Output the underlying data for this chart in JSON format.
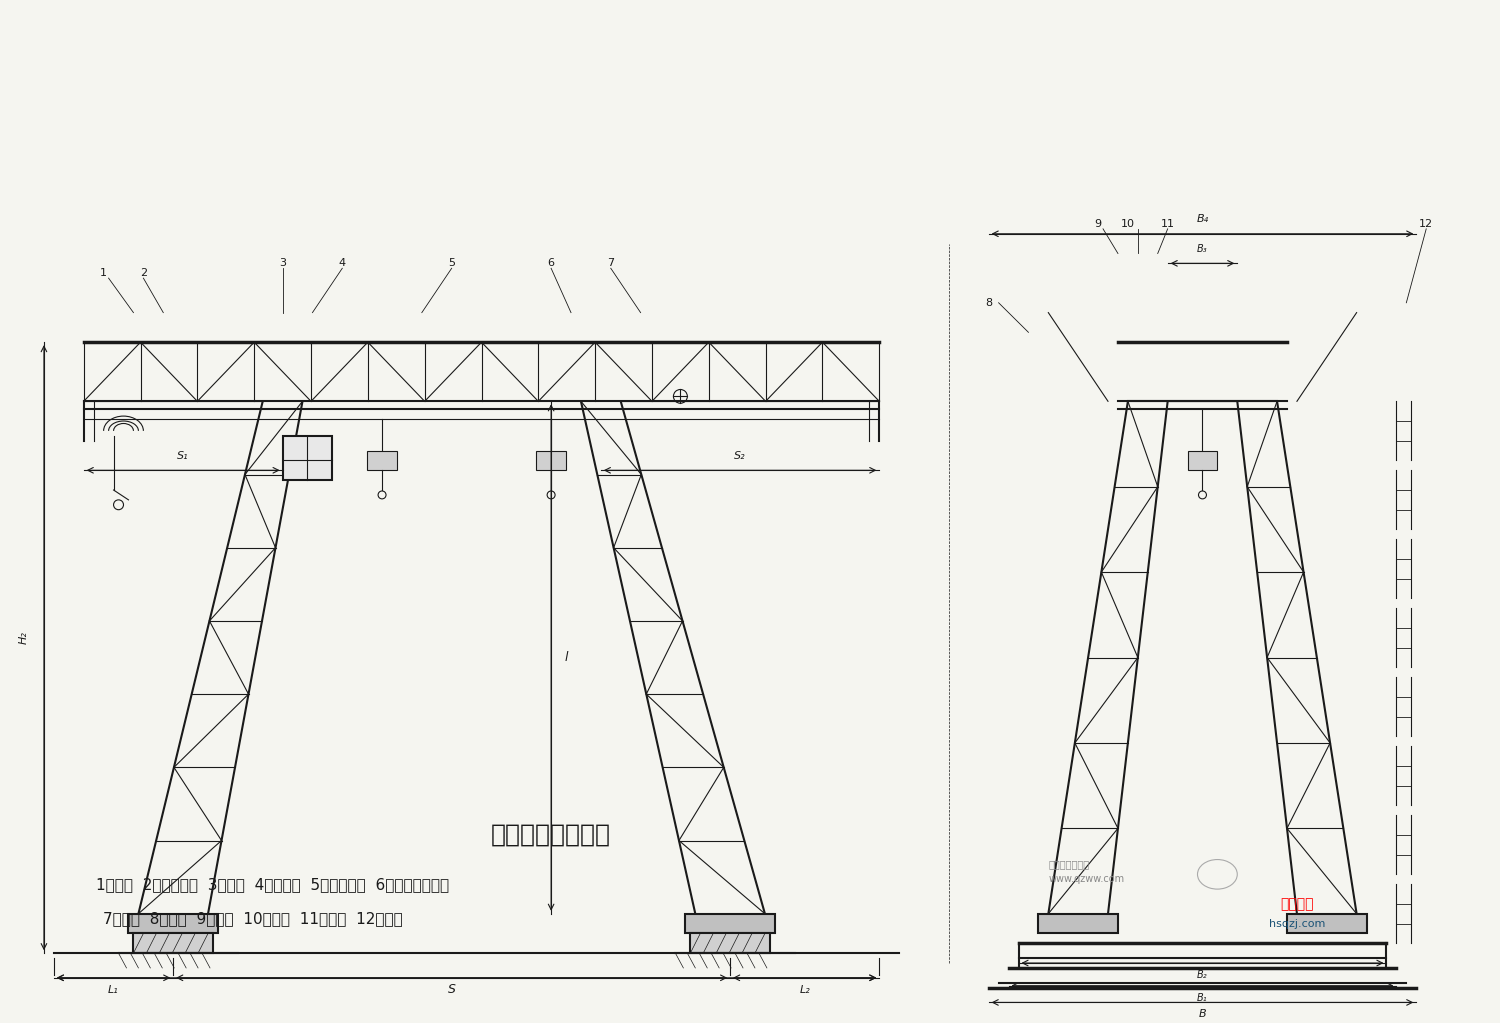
{
  "title": "结构及外型尺寸图",
  "bg_color": "#f5f5f0",
  "line_color": "#1a1a1a",
  "dim_color": "#1a1a1a",
  "label_line1": "1、主梁  2、电器安装  3、支腿  4、操纵室  5、电动葫芦  6、大车运行机构",
  "label_line2": "7、铭牌  8、横梁  9、螺栓  10、螺母  11、垫圈  12、梯子",
  "watermark1": "起重旺旺商贸城",
  "watermark2": "www.qzww.com",
  "brand": "上起鸿升",
  "brand_url": "hsqzj.com",
  "dim_labels": {
    "L1": "L₁",
    "S": "S",
    "L2": "L₂",
    "S1": "S₁",
    "S2": "S₂",
    "H2": "H₂",
    "l": "l",
    "B": "B",
    "B1": "B₁",
    "B2": "B₂",
    "B3": "B₃",
    "B4": "B₄"
  },
  "part_labels": {
    "1": "1",
    "2": "2",
    "3": "3",
    "4": "4",
    "5": "5",
    "6": "6",
    "7": "7",
    "8": "8",
    "9": "9",
    "10": "10",
    "11": "11",
    "12": "12"
  }
}
